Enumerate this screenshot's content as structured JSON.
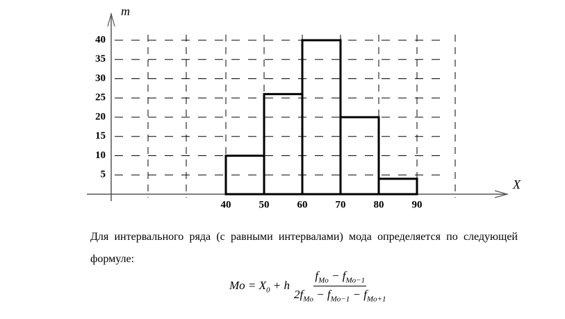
{
  "chart_data": {
    "type": "histogram",
    "ylabel": "m",
    "xlabel": "X",
    "bins": [
      40,
      50,
      60,
      70,
      80,
      90
    ],
    "values": [
      10,
      26,
      40,
      20,
      4
    ],
    "color": "#000000",
    "xlim": [
      10,
      100
    ],
    "xticks": [
      40,
      50,
      60,
      70,
      80,
      90
    ],
    "ylim": [
      0,
      40
    ],
    "yticks": [
      5,
      10,
      15,
      20,
      25,
      30,
      35,
      40
    ],
    "grid": true
  },
  "text": {
    "paragraph": "Для интервального ряда (с равными интервалами) мода определяется по следующей формуле:"
  },
  "formula": {
    "lhs": "Mo = X",
    "lhs_sub": "0",
    "plus": " + h",
    "num": [
      "f",
      "Mo",
      " − f",
      "Mo−1"
    ],
    "den": [
      "2f",
      "Mo",
      " − f",
      "Mo−1",
      " − f",
      "Mo+1"
    ]
  }
}
